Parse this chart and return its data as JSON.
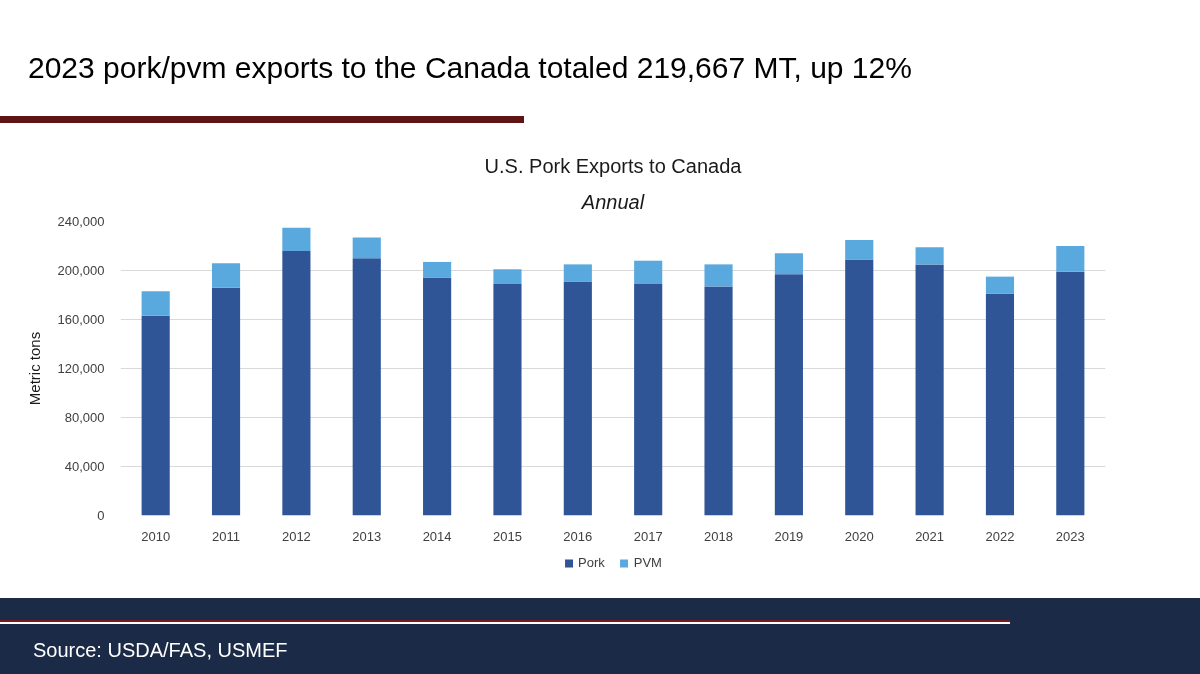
{
  "chart_data": {
    "type": "bar",
    "title": "U.S. Pork Exports to Canada",
    "subtitle": "Annual",
    "ylabel": "Metric tons",
    "annotations": [
      "2023 pork/pvm exports to the Canada totaled 219,667 MT, up 12%",
      "Source: USDA/FAS, USMEF"
    ],
    "categories": [
      "2010",
      "2011",
      "2012",
      "2013",
      "2014",
      "2015",
      "2016",
      "2017",
      "2018",
      "2019",
      "2020",
      "2021",
      "2022",
      "2023"
    ],
    "series": [
      {
        "name": "Pork",
        "color": "#2f5597",
        "values": [
          163000,
          186000,
          216000,
          210000,
          194000,
          189000,
          191000,
          189000,
          187000,
          197000,
          209000,
          205000,
          181000,
          199000
        ]
      },
      {
        "name": "PVM",
        "color": "#5aa9de",
        "values": [
          20000,
          20000,
          19000,
          17000,
          13000,
          12000,
          14000,
          19000,
          18000,
          17000,
          16000,
          14000,
          14000,
          21000
        ]
      }
    ],
    "stacked": true,
    "ylim": [
      0,
      240000
    ],
    "yticks": [
      0,
      {
        "value": 40000,
        "label": "40,000"
      },
      {
        "value": 80000,
        "label": "80,000"
      },
      {
        "value": 120000,
        "label": "120,000"
      },
      {
        "value": 160000,
        "label": "160,000"
      },
      {
        "value": 200000,
        "label": "200,000"
      },
      {
        "value": 240000,
        "label": "240,000"
      }
    ],
    "grid": "y",
    "legend": "bottom"
  }
}
